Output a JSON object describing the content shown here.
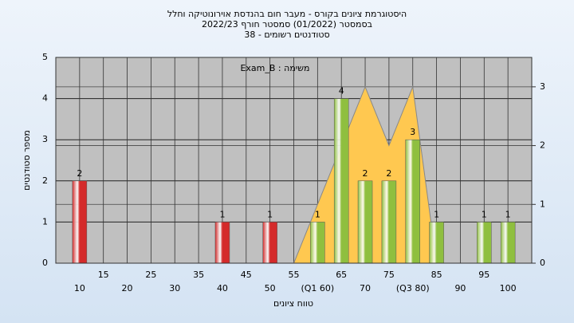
{
  "chart_data": {
    "type": "bar",
    "title": "היסטוגרמת ציונים בקורס - מעבר חום בהנדסת אוירונוטיקה וחלל",
    "subtitle": "בסמסטר  (01/2022)  סמסטר חורף 2022/23",
    "subtitle2": "סטודנטים רשומים - 38",
    "annotation": "משימה : Exam_B",
    "x_label": "טווח ציונים",
    "y_label": "מספר סטודנטים",
    "x": [
      10,
      40,
      50,
      60,
      65,
      70,
      75,
      80,
      85,
      95,
      100
    ],
    "values": [
      2,
      1,
      1,
      1,
      4,
      2,
      2,
      3,
      1,
      1,
      1
    ],
    "colors": [
      "#d42a2a",
      "#d42a2a",
      "#d42a2a",
      "#8fbf3f",
      "#8fbf3f",
      "#8fbf3f",
      "#8fbf3f",
      "#8fbf3f",
      "#8fbf3f",
      "#8fbf3f",
      "#8fbf3f"
    ],
    "area": {
      "color": "#ffc850",
      "x": [
        55,
        60,
        65,
        70,
        75,
        80,
        85
      ],
      "values": [
        0,
        1,
        2,
        3,
        2,
        3,
        0
      ]
    },
    "xlim": [
      5,
      105
    ],
    "xticks": [
      10,
      15,
      20,
      25,
      30,
      35,
      40,
      45,
      50,
      55,
      {
        "value": 60,
        "label": "(Q1 60)"
      },
      65,
      70,
      75,
      {
        "value": 80,
        "label": "(Q3 80)"
      },
      85,
      90,
      95,
      100
    ],
    "ylim": [
      0,
      5
    ],
    "yticks": [
      0,
      1,
      2,
      3,
      4,
      5
    ],
    "y2lim": [
      0,
      3.5
    ],
    "y2ticks": [
      0,
      1,
      2,
      3
    ],
    "grid": true
  }
}
